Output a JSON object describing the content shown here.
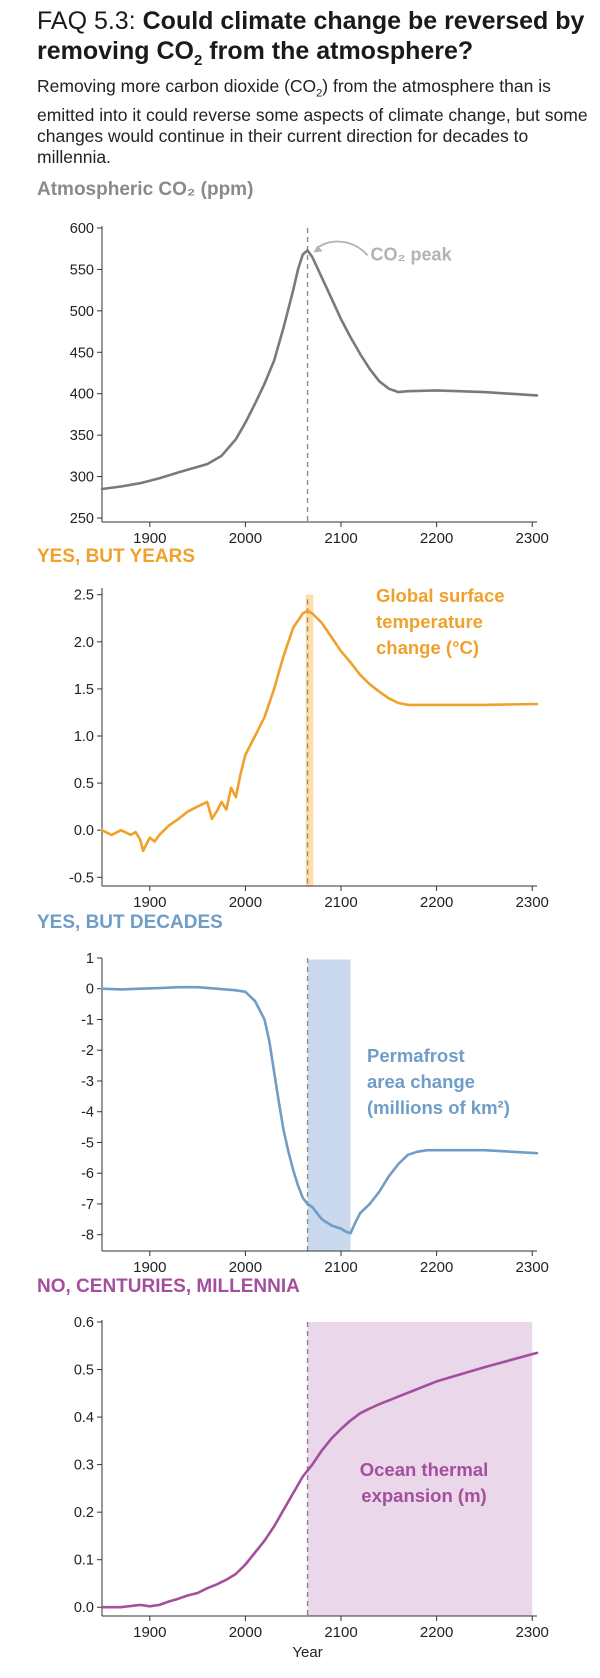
{
  "header": {
    "faq_label": "FAQ 5.3:",
    "title_pre": "Could climate change be reversed by removing CO",
    "title_sub": "2",
    "title_post": " from the atmosphere?",
    "subtitle_pre": "Removing more carbon dioxide (CO",
    "subtitle_sub": "2",
    "subtitle_post": ") from the atmosphere than is emitted into it could reverse some aspects of climate change, but some changes would continue in their current direction for decades to millennia."
  },
  "colors": {
    "co2": "#7a7a7a",
    "temperature": "#f0a12b",
    "permafrost": "#6f9dc7",
    "ocean": "#a44f9e",
    "axis": "#333333",
    "co2_annotation": "#b3b3b3"
  },
  "chart_data": [
    {
      "id": "co2",
      "type": "line",
      "title": "Atmospheric CO₂ (ppm)",
      "annotation": "CO₂ peak",
      "xlim": [
        1850,
        2305
      ],
      "ylim": [
        250,
        600
      ],
      "x_ticks": [
        "1900",
        "2000",
        "2100",
        "2200",
        "2300"
      ],
      "y_ticks": [
        "600",
        "550",
        "500",
        "450",
        "400",
        "350",
        "300",
        "250"
      ],
      "peak_year": 2065,
      "series": [
        {
          "x": [
            1850,
            1870,
            1890,
            1910,
            1930,
            1945,
            1960,
            1975,
            1990,
            2000,
            2010,
            2020,
            2030,
            2040,
            2050,
            2055,
            2060,
            2065,
            2070,
            2080,
            2090,
            2100,
            2110,
            2120,
            2130,
            2140,
            2150,
            2160,
            2170,
            2200,
            2250,
            2305
          ],
          "y": [
            285,
            288,
            292,
            298,
            305,
            310,
            315,
            325,
            345,
            365,
            388,
            412,
            440,
            480,
            525,
            550,
            568,
            573,
            565,
            540,
            515,
            490,
            468,
            448,
            430,
            415,
            406,
            402,
            403,
            404,
            402,
            398
          ]
        }
      ]
    },
    {
      "id": "temperature",
      "type": "line",
      "title": "YES, BUT YEARS",
      "series_label": "Global surface temperature change (°C)",
      "xlim": [
        1850,
        2305
      ],
      "ylim": [
        -0.55,
        2.55
      ],
      "x_ticks": [
        "1900",
        "2000",
        "2100",
        "2200",
        "2300"
      ],
      "y_ticks": [
        "2.5",
        "2.0",
        "1.5",
        "1.0",
        "0.5",
        "0.0",
        "-0.5"
      ],
      "highlight_band": [
        2063,
        2071
      ],
      "series": [
        {
          "x": [
            1850,
            1860,
            1870,
            1880,
            1885,
            1890,
            1893,
            1900,
            1905,
            1910,
            1920,
            1930,
            1940,
            1950,
            1960,
            1965,
            1970,
            1975,
            1980,
            1985,
            1990,
            1995,
            2000,
            2010,
            2020,
            2030,
            2040,
            2050,
            2060,
            2065,
            2070,
            2080,
            2090,
            2100,
            2110,
            2120,
            2130,
            2140,
            2150,
            2160,
            2170,
            2200,
            2250,
            2305
          ],
          "y": [
            0.0,
            -0.05,
            0.0,
            -0.05,
            -0.02,
            -0.1,
            -0.22,
            -0.08,
            -0.12,
            -0.05,
            0.05,
            0.12,
            0.2,
            0.25,
            0.3,
            0.12,
            0.2,
            0.3,
            0.22,
            0.45,
            0.35,
            0.6,
            0.8,
            1.0,
            1.2,
            1.5,
            1.85,
            2.15,
            2.3,
            2.33,
            2.3,
            2.2,
            2.05,
            1.9,
            1.78,
            1.65,
            1.55,
            1.47,
            1.4,
            1.35,
            1.33,
            1.33,
            1.33,
            1.34
          ]
        }
      ]
    },
    {
      "id": "permafrost",
      "type": "line",
      "title": "YES, BUT DECADES",
      "series_label": "Permafrost area change (millions of km²)",
      "xlim": [
        1850,
        2305
      ],
      "ylim": [
        -8.4,
        1.0
      ],
      "x_ticks": [
        "1900",
        "2000",
        "2100",
        "2200",
        "2300"
      ],
      "y_ticks": [
        "1",
        "0",
        "-1",
        "-2",
        "-3",
        "-4",
        "-5",
        "-6",
        "-7",
        "-8"
      ],
      "highlight_band": [
        2065,
        2110
      ],
      "series": [
        {
          "x": [
            1850,
            1870,
            1890,
            1910,
            1930,
            1950,
            1970,
            1990,
            2000,
            2010,
            2020,
            2025,
            2030,
            2035,
            2040,
            2045,
            2050,
            2055,
            2060,
            2065,
            2070,
            2075,
            2080,
            2090,
            2100,
            2105,
            2110,
            2115,
            2120,
            2130,
            2140,
            2150,
            2160,
            2170,
            2180,
            2190,
            2200,
            2250,
            2305
          ],
          "y": [
            0.0,
            -0.02,
            0.0,
            0.02,
            0.05,
            0.05,
            0.0,
            -0.05,
            -0.1,
            -0.4,
            -1.0,
            -1.7,
            -2.7,
            -3.7,
            -4.6,
            -5.3,
            -5.9,
            -6.4,
            -6.8,
            -7.0,
            -7.1,
            -7.3,
            -7.5,
            -7.7,
            -7.8,
            -7.9,
            -7.95,
            -7.6,
            -7.3,
            -7.0,
            -6.6,
            -6.1,
            -5.7,
            -5.4,
            -5.3,
            -5.25,
            -5.25,
            -5.25,
            -5.35
          ]
        }
      ]
    },
    {
      "id": "ocean",
      "type": "line",
      "title": "NO, CENTURIES, MILLENNIA",
      "series_label": "Ocean thermal expansion (m)",
      "xlim": [
        1850,
        2305
      ],
      "ylim": [
        -0.01,
        0.6
      ],
      "x_ticks": [
        "1900",
        "2000",
        "2100",
        "2200",
        "2300"
      ],
      "y_ticks": [
        "0.6",
        "0.5",
        "0.4",
        "0.3",
        "0.2",
        "0.1",
        "0.0"
      ],
      "x_axis_label": "Year",
      "highlight_band": [
        2065,
        2300
      ],
      "series": [
        {
          "x": [
            1850,
            1870,
            1890,
            1900,
            1910,
            1920,
            1930,
            1940,
            1950,
            1960,
            1970,
            1980,
            1990,
            2000,
            2010,
            2020,
            2030,
            2040,
            2050,
            2060,
            2070,
            2080,
            2090,
            2100,
            2110,
            2120,
            2130,
            2140,
            2150,
            2160,
            2180,
            2200,
            2250,
            2305
          ],
          "y": [
            0.0,
            0.0,
            0.005,
            0.002,
            0.005,
            0.012,
            0.018,
            0.025,
            0.03,
            0.04,
            0.048,
            0.058,
            0.07,
            0.09,
            0.115,
            0.14,
            0.17,
            0.205,
            0.24,
            0.275,
            0.3,
            0.33,
            0.355,
            0.375,
            0.393,
            0.408,
            0.418,
            0.427,
            0.435,
            0.443,
            0.459,
            0.475,
            0.505,
            0.535
          ]
        }
      ]
    }
  ]
}
